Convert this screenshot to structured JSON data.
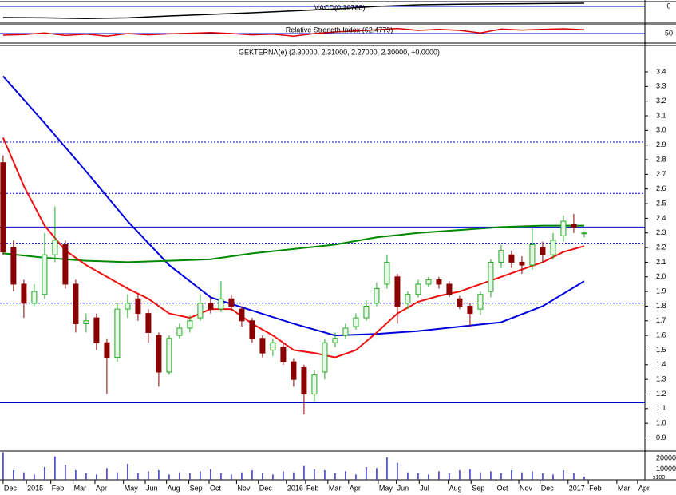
{
  "chart_data": [
    {
      "type": "line",
      "title": "MACD(0.10788)",
      "series": [
        {
          "color": "#000000",
          "x": [
            0,
            8,
            16,
            24,
            32,
            40,
            48,
            56,
            64,
            72,
            80,
            88,
            96,
            104,
            112
          ],
          "values": [
            -0.35,
            -0.36,
            -0.38,
            -0.36,
            -0.3,
            -0.25,
            -0.2,
            -0.14,
            -0.08,
            0.0,
            0.05,
            0.07,
            0.08,
            0.09,
            0.1
          ]
        }
      ],
      "ylim": [
        -0.5,
        0.15
      ],
      "yticks": [
        0
      ]
    },
    {
      "type": "line",
      "title": "Relative Strength Index (62.4779)",
      "series": [
        {
          "color": "#dd0000",
          "x": [
            0,
            4,
            8,
            12,
            16,
            20,
            24,
            28,
            32,
            36,
            40,
            44,
            48,
            52,
            56,
            60,
            64,
            68,
            72,
            76,
            80,
            84,
            88,
            92,
            96,
            100,
            104,
            108,
            112
          ],
          "values": [
            45,
            47,
            52,
            44,
            48,
            42,
            50,
            46,
            49,
            51,
            53,
            50,
            46,
            48,
            42,
            50,
            55,
            58,
            62,
            66,
            60,
            63,
            60,
            52,
            64,
            61,
            63,
            65,
            62
          ]
        }
      ],
      "ylim": [
        20,
        80
      ],
      "yticks": [
        50
      ]
    },
    {
      "type": "candlestick",
      "title": "GEKTERNA(e) (2.30000, 2.31000, 2.27000, 2.30000, +0.0000)",
      "x": [
        0,
        2,
        4,
        6,
        8,
        10,
        12,
        14,
        16,
        18,
        20,
        22,
        24,
        26,
        28,
        30,
        32,
        34,
        36,
        38,
        40,
        42,
        44,
        46,
        48,
        50,
        52,
        54,
        56,
        58,
        60,
        62,
        64,
        66,
        68,
        70,
        72,
        74,
        76,
        78,
        80,
        82,
        84,
        86,
        88,
        90,
        92,
        94,
        96,
        98,
        100,
        102,
        104,
        106,
        108,
        110,
        112
      ],
      "open": [
        2.78,
        2.2,
        1.95,
        1.82,
        1.88,
        2.15,
        2.22,
        1.95,
        1.68,
        1.72,
        1.55,
        1.45,
        1.78,
        1.85,
        1.75,
        1.6,
        1.35,
        1.6,
        1.65,
        1.72,
        1.82,
        1.78,
        1.85,
        1.78,
        1.7,
        1.58,
        1.5,
        1.52,
        1.42,
        1.38,
        1.2,
        1.35,
        1.55,
        1.6,
        1.66,
        1.72,
        1.82,
        1.95,
        2.0,
        1.82,
        1.88,
        1.95,
        1.98,
        1.95,
        1.85,
        1.8,
        1.78,
        1.9,
        2.1,
        2.15,
        2.1,
        2.08,
        2.2,
        2.15,
        2.28,
        2.36,
        2.3
      ],
      "high": [
        2.83,
        2.25,
        1.98,
        1.95,
        2.3,
        2.48,
        2.25,
        1.98,
        1.75,
        1.75,
        1.58,
        1.82,
        1.88,
        1.88,
        1.78,
        1.62,
        1.6,
        1.68,
        1.74,
        1.88,
        1.86,
        1.97,
        1.88,
        1.8,
        1.72,
        1.6,
        1.58,
        1.55,
        1.44,
        1.4,
        1.36,
        1.58,
        1.62,
        1.68,
        1.75,
        1.84,
        1.96,
        2.15,
        2.02,
        1.9,
        1.98,
        2.0,
        2.0,
        1.97,
        1.87,
        1.82,
        1.9,
        2.12,
        2.22,
        2.18,
        2.14,
        2.33,
        2.24,
        2.3,
        2.42,
        2.43,
        2.31
      ],
      "low": [
        2.15,
        1.9,
        1.72,
        1.8,
        1.85,
        2.1,
        1.92,
        1.62,
        1.62,
        1.5,
        1.2,
        1.42,
        1.72,
        1.7,
        1.55,
        1.25,
        1.33,
        1.58,
        1.62,
        1.7,
        1.75,
        1.76,
        1.77,
        1.66,
        1.55,
        1.45,
        1.46,
        1.4,
        1.25,
        1.06,
        1.15,
        1.3,
        1.52,
        1.58,
        1.64,
        1.7,
        1.8,
        1.92,
        1.68,
        1.78,
        1.86,
        1.93,
        1.92,
        1.86,
        1.78,
        1.66,
        1.74,
        1.86,
        2.06,
        2.06,
        2.02,
        2.05,
        2.1,
        2.12,
        2.24,
        2.3,
        2.27
      ],
      "close": [
        2.17,
        1.95,
        1.82,
        1.9,
        2.15,
        2.25,
        1.95,
        1.68,
        1.7,
        1.55,
        1.45,
        1.78,
        1.82,
        1.75,
        1.62,
        1.35,
        1.58,
        1.65,
        1.7,
        1.82,
        1.78,
        1.85,
        1.8,
        1.7,
        1.58,
        1.48,
        1.55,
        1.42,
        1.3,
        1.2,
        1.33,
        1.55,
        1.58,
        1.65,
        1.72,
        1.8,
        1.92,
        2.1,
        1.8,
        1.88,
        1.95,
        1.98,
        1.95,
        1.88,
        1.8,
        1.75,
        1.88,
        2.1,
        2.18,
        2.1,
        2.08,
        2.22,
        2.15,
        2.25,
        2.38,
        2.34,
        2.3
      ],
      "up_color": "#22aa22",
      "down_color": "#8b0000",
      "series": [
        {
          "color": "#0000dd",
          "x": [
            0,
            8,
            16,
            24,
            32,
            40,
            48,
            56,
            64,
            72,
            80,
            88,
            96,
            104,
            112
          ],
          "values": [
            3.37,
            3.05,
            2.72,
            2.38,
            2.08,
            1.86,
            1.77,
            1.68,
            1.6,
            1.61,
            1.63,
            1.66,
            1.69,
            1.8,
            1.97
          ]
        },
        {
          "color": "#008800",
          "x": [
            0,
            8,
            16,
            24,
            32,
            40,
            48,
            56,
            64,
            72,
            80,
            88,
            96,
            104,
            112
          ],
          "values": [
            2.16,
            2.13,
            2.11,
            2.1,
            2.11,
            2.12,
            2.16,
            2.19,
            2.22,
            2.27,
            2.3,
            2.32,
            2.34,
            2.35,
            2.35
          ]
        },
        {
          "color": "#ee1111",
          "x": [
            0,
            4,
            8,
            12,
            16,
            20,
            24,
            28,
            32,
            36,
            40,
            44,
            48,
            52,
            56,
            60,
            64,
            68,
            72,
            76,
            80,
            84,
            88,
            92,
            96,
            100,
            104,
            108,
            112
          ],
          "values": [
            2.95,
            2.62,
            2.35,
            2.18,
            2.08,
            2.0,
            1.92,
            1.85,
            1.75,
            1.72,
            1.78,
            1.78,
            1.68,
            1.6,
            1.5,
            1.48,
            1.45,
            1.5,
            1.62,
            1.75,
            1.83,
            1.87,
            1.9,
            1.95,
            2.0,
            2.05,
            2.1,
            2.17,
            2.21
          ]
        }
      ],
      "levels": [
        {
          "value": 2.92,
          "style": "dotted"
        },
        {
          "value": 2.57,
          "style": "dotted"
        },
        {
          "value": 2.34,
          "style": "solid"
        },
        {
          "value": 2.23,
          "style": "dotted"
        },
        {
          "value": 1.82,
          "style": "dotted"
        },
        {
          "value": 1.14,
          "style": "solid"
        }
      ],
      "level_color": "#0000cc",
      "ylim": [
        0.81,
        3.58
      ],
      "yticks": [
        {
          "value": 0.9,
          "label": "0.9"
        },
        {
          "value": 1,
          "label": "1.0"
        },
        1.1,
        1.2,
        1.3,
        1.4,
        1.5,
        1.6,
        1.7,
        1.8,
        1.9,
        {
          "value": 2,
          "label": "2.0"
        },
        2.1,
        2.2,
        2.3,
        2.4,
        2.5,
        2.6,
        2.7,
        2.8,
        2.9,
        {
          "value": 3,
          "label": "3.0"
        },
        3.1,
        3.2,
        3.3,
        3.4
      ],
      "xlim": [
        -0.6,
        123.7
      ],
      "xticks": [
        {
          "value": 0,
          "label": "Dec"
        },
        {
          "value": 4.5,
          "label": "2015"
        },
        {
          "value": 9.2,
          "label": "Feb"
        },
        {
          "value": 13.5,
          "label": "Mar"
        },
        {
          "value": 17.7,
          "label": "Apr"
        },
        {
          "value": 23.2,
          "label": "May"
        },
        {
          "value": 27.4,
          "label": "Jun"
        },
        {
          "value": 31.5,
          "label": "Aug"
        },
        {
          "value": 35.8,
          "label": "Sep"
        },
        {
          "value": 39.7,
          "label": "Oct"
        },
        {
          "value": 45,
          "label": "Nov"
        },
        {
          "value": 49.2,
          "label": "Dec"
        },
        {
          "value": 54.6,
          "label": "2016"
        },
        {
          "value": 58.3,
          "label": "Feb"
        },
        {
          "value": 62.6,
          "label": "Mar"
        },
        {
          "value": 66.6,
          "label": "Apr"
        },
        {
          "value": 72.3,
          "label": "May"
        },
        {
          "value": 75.8,
          "label": "Jun"
        },
        {
          "value": 80.2,
          "label": "Jul"
        },
        {
          "value": 85.8,
          "label": "Aug"
        },
        {
          "value": 90.2,
          "label": "Sep"
        },
        {
          "value": 95,
          "label": "Oct"
        },
        {
          "value": 99.4,
          "label": "Nov"
        },
        {
          "value": 103.5,
          "label": "Dec"
        },
        {
          "value": 108.9,
          "label": "2017"
        },
        {
          "value": 112.8,
          "label": "Feb"
        },
        {
          "value": 118.3,
          "label": "Mar"
        },
        {
          "value": 122.3,
          "label": "Apr"
        }
      ]
    },
    {
      "type": "bar",
      "unit": "x100",
      "color": "#3333cc",
      "values": [
        26000,
        9000,
        7000,
        5000,
        12000,
        22000,
        14000,
        9000,
        6000,
        5000,
        11000,
        7000,
        15000,
        6000,
        8000,
        9000,
        5000,
        7000,
        6000,
        8000,
        10000,
        6000,
        5000,
        7000,
        9000,
        6000,
        5000,
        8000,
        7000,
        13000,
        10000,
        9000,
        6000,
        8000,
        5000,
        12000,
        11000,
        21000,
        16000,
        7000,
        6000,
        5000,
        8000,
        6000,
        9000,
        10000,
        7000,
        8000,
        6000,
        9000,
        7000,
        8000,
        6000,
        5000,
        9000,
        6000,
        3000
      ],
      "ylim": [
        0,
        27000
      ],
      "yticks": [
        10000,
        20000
      ]
    }
  ]
}
